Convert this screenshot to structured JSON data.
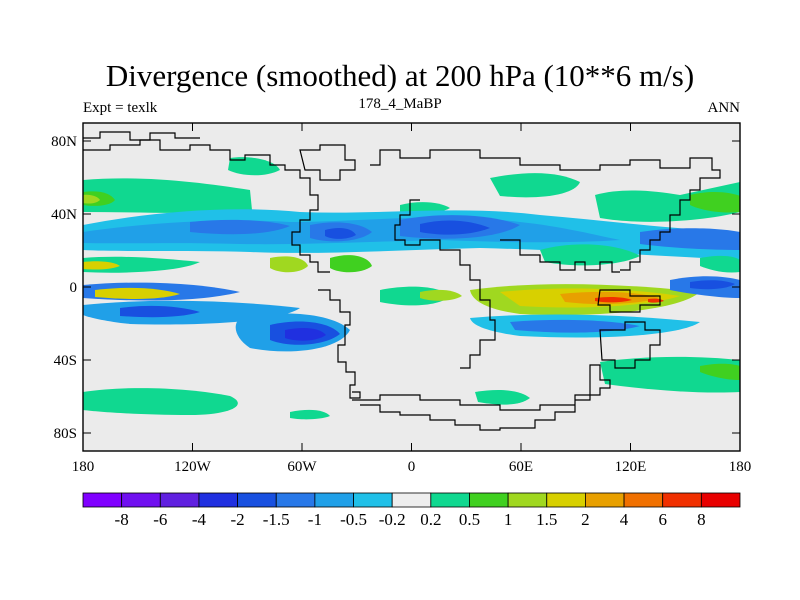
{
  "title": "Divergence (smoothed) at 200 hPa (10**6 m/s)",
  "subtitle_left": "Expt = texlk",
  "subtitle_center": "178_4_MaBP",
  "subtitle_right": "ANN",
  "lat_ticks": [
    "80N",
    "40N",
    "0",
    "40S",
    "80S"
  ],
  "lon_ticks": [
    "180",
    "120W",
    "60W",
    "0",
    "60E",
    "120E",
    "180"
  ],
  "colorbar": {
    "labels": [
      "-8",
      "-6",
      "-4",
      "-2",
      "-1.5",
      "-1",
      "-0.5",
      "-0.2",
      "0.2",
      "0.5",
      "1",
      "1.5",
      "2",
      "4",
      "6",
      "8"
    ],
    "colors": [
      "#8000ff",
      "#7010f0",
      "#6020e0",
      "#2030e0",
      "#1850e0",
      "#2878e8",
      "#20a0e8",
      "#20c0e8",
      "#eeeeee",
      "#10d890",
      "#40d020",
      "#a0d820",
      "#d8d000",
      "#e8a000",
      "#f07000",
      "#f03000",
      "#e80000"
    ]
  },
  "palette": {
    "background": "#ebebeb",
    "coast": "#000000"
  }
}
